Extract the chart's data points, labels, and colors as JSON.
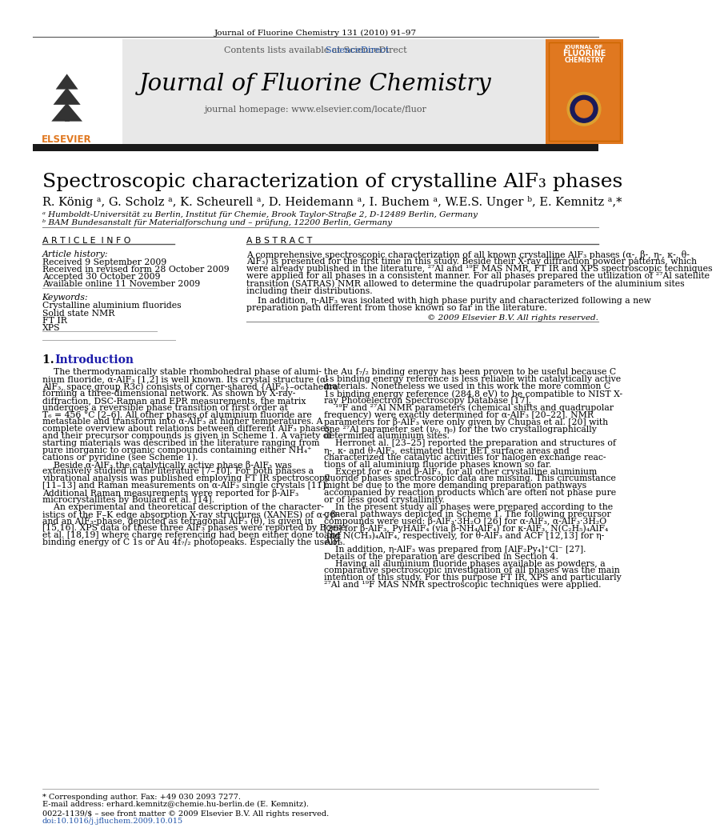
{
  "page_title_journal": "Journal of Fluorine Chemistry 131 (2010) 91–97",
  "journal_name": "Journal of Fluorine Chemistry",
  "contents_line": "Contents lists available at ScienceDirect",
  "homepage_line": "journal homepage: www.elsevier.com/locate/fluor",
  "article_title": "Spectroscopic characterization of crystalline AlF₃ phases",
  "authors": "R. König ᵃ, G. Scholz ᵃ, K. Scheurell ᵃ, D. Heidemann ᵃ, I. Buchem ᵃ, W.E.S. Unger ᵇ, E. Kemnitz ᵃ,*",
  "affil_a": "ᵃ Humboldt-Universität zu Berlin, Institut für Chemie, Brook Taylor-Straße 2, D-12489 Berlin, Germany",
  "affil_b": "ᵇ BAM Bundesanstalt für Materialforschung und – prüfung, 12200 Berlin, Germany",
  "article_info_header": "A R T I C L E  I N F O",
  "abstract_header": "A B S T R A C T",
  "article_history_label": "Article history:",
  "received": "Received 9 September 2009",
  "revised": "Received in revised form 28 October 2009",
  "accepted": "Accepted 30 October 2009",
  "available": "Available online 11 November 2009",
  "keywords_label": "Keywords:",
  "keyword1": "Crystalline aluminium fluorides",
  "keyword2": "Solid state NMR",
  "keyword3": "FT IR",
  "keyword4": "XPS",
  "copyright": "© 2009 Elsevier B.V. All rights reserved.",
  "footnote_star": "* Corresponding author. Fax: +49 030 2093 7277.",
  "footnote_email": "E-mail address: erhard.kemnitz@chemie.hu-berlin.de (E. Kemnitz).",
  "footer_issn": "0022-1139/$ – see front matter © 2009 Elsevier B.V. All rights reserved.",
  "footer_doi": "doi:10.1016/j.jfluchem.2009.10.015",
  "bg_color": "#ffffff",
  "header_bg": "#e8e8e8",
  "black_bar_color": "#1a1a1a",
  "orange_color": "#e07820",
  "blue_link_color": "#2255aa",
  "section_color": "#1a1aaa",
  "text_color": "#000000",
  "abstract_lines": [
    "A comprehensive spectroscopic characterization of all known crystalline AlF₃ phases (α-, β-, η-, κ-, θ-",
    "AlF₃) is presented for the first time in this study. Beside their X-ray diffraction powder patterns, which",
    "were already published in the literature, ²⁷Al and ¹⁹F MAS NMR, FT IR and XPS spectroscopic techniques",
    "were applied for all phases in a consistent manner. For all phases prepared the utilization of ²⁷Al satellite",
    "transition (SATRAS) NMR allowed to determine the quadrupolar parameters of the aluminium sites",
    "including their distributions."
  ],
  "abstract_lines2": [
    "    In addition, η-AlF₃ was isolated with high phase purity and characterized following a new",
    "preparation path different from those known so far in the literature."
  ],
  "col1_lines": [
    "    The thermodynamically stable rhombohedral phase of alumi-",
    "nium fluoride, α-AlF₃ [1,2] is well known. Its crystal structure (α-",
    "AlF₃, space group R3c) consists of corner-shared {AlF₆}–octahedra",
    "forming a three-dimensional network. As shown by X-ray-",
    "diffraction, DSC-Raman and EPR measurements, the matrix",
    "undergoes a reversible phase transition of first order at",
    "T₆ = 456 °C [2–6]. All other phases of aluminium fluoride are",
    "metastable and transform into α-AlF₃ at higher temperatures. A",
    "complete overview about relations between different AlF₃ phases",
    "and their precursor compounds is given in Scheme 1. A variety of",
    "starting materials was described in the literature ranging from",
    "pure inorganic to organic compounds containing either NH₄⁺",
    "cations or pyridine (see Scheme 1).",
    "    Beside α-AlF₃ the catalytically active phase β-AlF₃ was",
    "extensively studied in the literature [7–10]. For both phases a",
    "vibrational analysis was published employing FT IR spectroscopy",
    "[11–13] and Raman measurements on α-AlF₃ single crystals [11].",
    "Additional Raman measurements were reported for β-AlF₃",
    "microcrystallites by Boulard et al. [14].",
    "    An experimental and theoretical description of the character-",
    "istics of the F–K edge absorption X-ray structures (XANES) of α-, β-",
    "and an AlF₃-phase, depicted as tetragonal AlF₃ (θ), is given in",
    "[15,16]. XPS data of these three AlF₃ phases were reported by Boese",
    "et al. [18,19] where charge referencing had been either done to the",
    "binding energy of C 1s or Au 4f₇/₂ photopeaks. Especially the use of"
  ],
  "col2_lines": [
    "the Au f₇/₂ binding energy has been proven to be useful because C",
    "1s binding energy reference is less reliable with catalytically active",
    "materials. Nonetheless we used in this work the more common C",
    "1s binding energy reference (284.8 eV) to be compatible to NIST X-",
    "ray Photoelectron Spectroscopy Database [17].",
    "    ¹⁹F and ²⁷Al NMR parameters (chemical shifts and quadrupolar",
    "frequency) were exactly determined for α-AlF₃ [20–22]. NMR",
    "parameters for β-AlF₃ were only given by Chupas et al. [20] with",
    "one ²⁷Al parameter set (ν₀, η₀) for the two crystallographically",
    "determined aluminium sites.",
    "    Herronet al. [23–25] reported the preparation and structures of",
    "η-, κ- and θ-AlF₃, estimated their BET surface areas and",
    "characterized the catalytic activities for halogen exchange reac-",
    "tions of all aluminium fluoride phases known so far.",
    "    Except for α- and β-AlF₃, for all other crystalline aluminium",
    "fluoride phases spectroscopic data are missing. This circumstance",
    "might be due to the more demanding preparation pathways",
    "accompanied by reaction products which are often not phase pure",
    "or of less good crystallinity.",
    "    In the present study all phases were prepared according to the",
    "general pathways depicted in Scheme 1. The following precursor",
    "compounds were used: β-AlF₃·3H₂O [26] for α-AlF₃, α-AlF₃·3H₂O",
    "[26] for β-AlF₃, PyHAlF₄ (via β-NH₄AlF₄) for κ-AlF₃, N(C₂H₅)₄AlF₄",
    "and N(CH₃)₄AlF₄, respectively, for θ-AlF₃ and ACF [12,13] for η-",
    "AlF₃.",
    "    In addition, η-AlF₃ was prepared from [AlF₂Py₄]⁺Cl⁻ [27].",
    "Details of the preparation are described in Section 4.",
    "    Having all aluminium fluoride phases available as powders, a",
    "comparative spectroscopic investigation of all phases was the main",
    "intention of this study. For this purpose FT IR, XPS and particularly",
    "²⁷Al and ¹⁹F MAS NMR spectroscopic techniques were applied."
  ]
}
